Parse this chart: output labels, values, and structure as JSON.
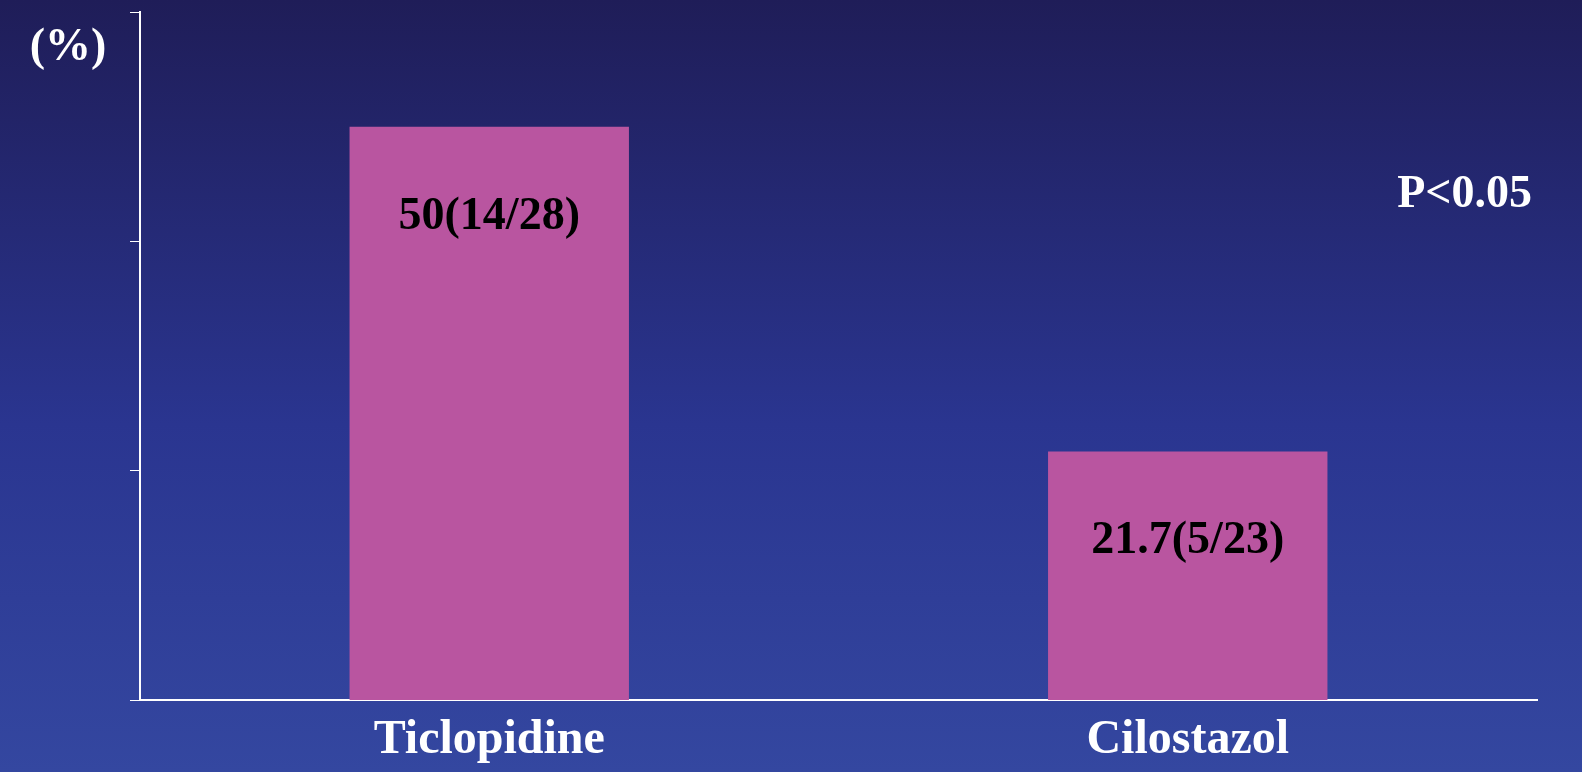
{
  "chart_data": {
    "type": "bar",
    "ylabel": "(%)",
    "categories": [
      "Ticlopidine",
      "Cilostazol"
    ],
    "values": [
      50,
      21.7
    ],
    "value_labels": [
      "50(14/28)",
      "21.7(5/23)"
    ],
    "color": "#b955a0",
    "ylim": [
      0,
      60
    ],
    "yticks": [
      {
        "value": 0,
        "label": null
      },
      {
        "value": 20,
        "label": null
      },
      {
        "value": 40,
        "label": null
      },
      {
        "value": 60,
        "label": null
      }
    ],
    "tick_labels": "x",
    "grid": false,
    "legend": false,
    "annotations": [
      "P<0.05"
    ]
  }
}
